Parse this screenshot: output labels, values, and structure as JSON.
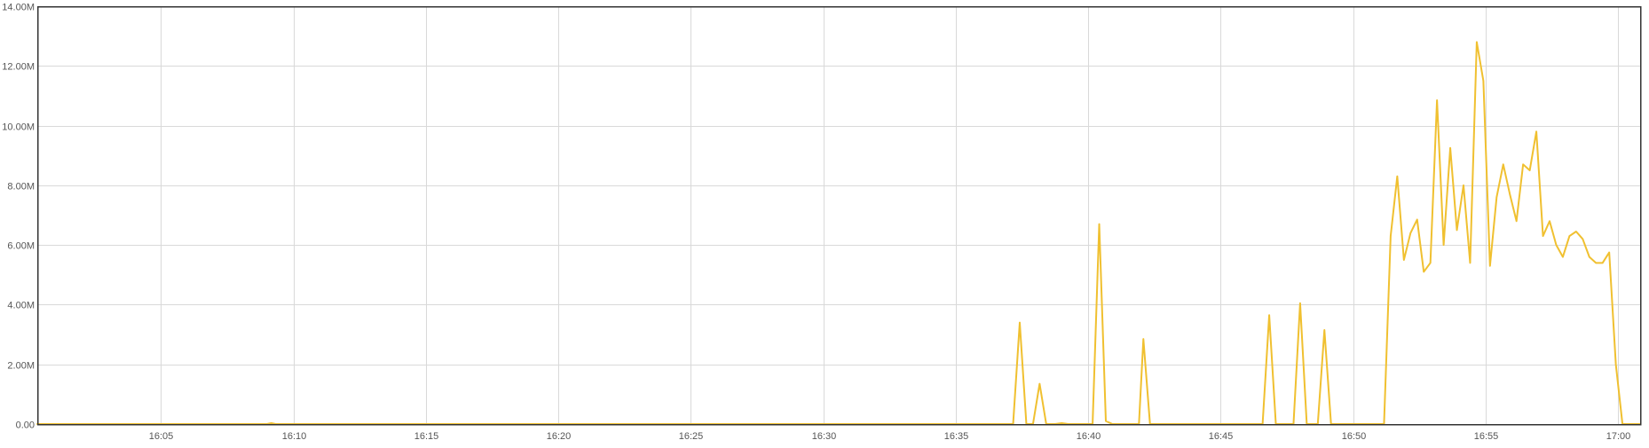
{
  "colors": {
    "series": "#f0c030",
    "grid": "#d9d9d9",
    "frame": "#333333",
    "tick_text": "#555555"
  },
  "chart_data": {
    "type": "line",
    "title": "",
    "xlabel": "",
    "ylabel": "",
    "grid": true,
    "legend": "none",
    "xlim": [
      "16:00:20",
      "17:00:50"
    ],
    "ylim": [
      0,
      14000000
    ],
    "x_ticks": [
      {
        "label": "16:05",
        "time": "16:05"
      },
      {
        "label": "16:10",
        "time": "16:10"
      },
      {
        "label": "16:15",
        "time": "16:15"
      },
      {
        "label": "16:20",
        "time": "16:20"
      },
      {
        "label": "16:25",
        "time": "16:25"
      },
      {
        "label": "16:30",
        "time": "16:30"
      },
      {
        "label": "16:35",
        "time": "16:35"
      },
      {
        "label": "16:40",
        "time": "16:40"
      },
      {
        "label": "16:45",
        "time": "16:45"
      },
      {
        "label": "16:50",
        "time": "16:50"
      },
      {
        "label": "16:55",
        "time": "16:55"
      },
      {
        "label": "17:00",
        "time": "17:00"
      }
    ],
    "y_ticks": [
      {
        "label": "0.00",
        "value": 0
      },
      {
        "label": "2.00M",
        "value": 2000000
      },
      {
        "label": "4.00M",
        "value": 4000000
      },
      {
        "label": "6.00M",
        "value": 6000000
      },
      {
        "label": "8.00M",
        "value": 8000000
      },
      {
        "label": "10.00M",
        "value": 10000000
      },
      {
        "label": "12.00M",
        "value": 12000000
      },
      {
        "label": "14.00M",
        "value": 14000000
      }
    ],
    "series": [
      {
        "color": "#f0c030",
        "points": [
          [
            "16:00:20",
            0
          ],
          [
            "16:09:00",
            0
          ],
          [
            "16:09:10",
            30000
          ],
          [
            "16:09:20",
            0
          ],
          [
            "16:37:10",
            0
          ],
          [
            "16:37:25",
            3400000
          ],
          [
            "16:37:40",
            0
          ],
          [
            "16:37:55",
            0
          ],
          [
            "16:38:10",
            1350000
          ],
          [
            "16:38:25",
            0
          ],
          [
            "16:38:45",
            0
          ],
          [
            "16:39:00",
            30000
          ],
          [
            "16:39:15",
            0
          ],
          [
            "16:40:10",
            0
          ],
          [
            "16:40:25",
            6700000
          ],
          [
            "16:40:40",
            100000
          ],
          [
            "16:40:55",
            0
          ],
          [
            "16:41:55",
            0
          ],
          [
            "16:42:05",
            2850000
          ],
          [
            "16:42:20",
            0
          ],
          [
            "16:46:35",
            0
          ],
          [
            "16:46:50",
            3650000
          ],
          [
            "16:47:05",
            0
          ],
          [
            "16:47:45",
            0
          ],
          [
            "16:48:00",
            4050000
          ],
          [
            "16:48:15",
            0
          ],
          [
            "16:48:40",
            0
          ],
          [
            "16:48:55",
            3150000
          ],
          [
            "16:49:10",
            0
          ],
          [
            "16:51:10",
            0
          ],
          [
            "16:51:25",
            6300000
          ],
          [
            "16:51:40",
            8300000
          ],
          [
            "16:51:55",
            5500000
          ],
          [
            "16:52:10",
            6400000
          ],
          [
            "16:52:25",
            6850000
          ],
          [
            "16:52:40",
            5100000
          ],
          [
            "16:52:55",
            5400000
          ],
          [
            "16:53:10",
            10850000
          ],
          [
            "16:53:25",
            6000000
          ],
          [
            "16:53:40",
            9250000
          ],
          [
            "16:53:55",
            6500000
          ],
          [
            "16:54:10",
            8000000
          ],
          [
            "16:54:25",
            5400000
          ],
          [
            "16:54:40",
            12800000
          ],
          [
            "16:54:55",
            11500000
          ],
          [
            "16:55:10",
            5300000
          ],
          [
            "16:55:25",
            7600000
          ],
          [
            "16:55:40",
            8700000
          ],
          [
            "16:55:55",
            7700000
          ],
          [
            "16:56:10",
            6800000
          ],
          [
            "16:56:25",
            8700000
          ],
          [
            "16:56:40",
            8500000
          ],
          [
            "16:56:55",
            9800000
          ],
          [
            "16:57:10",
            6300000
          ],
          [
            "16:57:25",
            6800000
          ],
          [
            "16:57:40",
            6000000
          ],
          [
            "16:57:55",
            5600000
          ],
          [
            "16:58:10",
            6300000
          ],
          [
            "16:58:25",
            6450000
          ],
          [
            "16:58:40",
            6200000
          ],
          [
            "16:58:55",
            5600000
          ],
          [
            "16:59:10",
            5400000
          ],
          [
            "16:59:25",
            5400000
          ],
          [
            "16:59:40",
            5750000
          ],
          [
            "16:59:55",
            2000000
          ],
          [
            "17:00:10",
            0
          ],
          [
            "17:00:50",
            0
          ]
        ]
      }
    ]
  }
}
